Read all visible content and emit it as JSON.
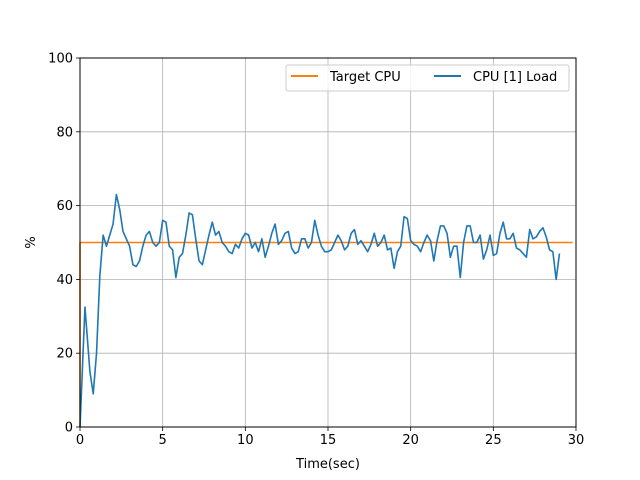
{
  "chart_data": {
    "type": "line",
    "title": "",
    "xlabel": "Time(sec)",
    "ylabel": "%",
    "xlim": [
      0,
      30
    ],
    "ylim": [
      0,
      100
    ],
    "xticks": [
      0,
      5,
      10,
      15,
      20,
      25,
      30
    ],
    "yticks": [
      0,
      20,
      40,
      60,
      80,
      100
    ],
    "grid": true,
    "legend_position": "top-right",
    "series": [
      {
        "name": "Target CPU",
        "color": "#ff7f0e",
        "points": [
          [
            0,
            0
          ],
          [
            0,
            50
          ],
          [
            29.8,
            50
          ]
        ]
      },
      {
        "name": "CPU [1] Load",
        "color": "#1f77b4",
        "points": [
          [
            0,
            0
          ],
          [
            0.3,
            32.5
          ],
          [
            0.6,
            15
          ],
          [
            0.8,
            9
          ],
          [
            1.0,
            20
          ],
          [
            1.2,
            41
          ],
          [
            1.4,
            52
          ],
          [
            1.6,
            49
          ],
          [
            1.8,
            52
          ],
          [
            2.0,
            55
          ],
          [
            2.2,
            63
          ],
          [
            2.4,
            59
          ],
          [
            2.6,
            53
          ],
          [
            2.8,
            51
          ],
          [
            3.0,
            49
          ],
          [
            3.2,
            44
          ],
          [
            3.4,
            43.5
          ],
          [
            3.6,
            45
          ],
          [
            3.8,
            49
          ],
          [
            4.0,
            52
          ],
          [
            4.2,
            53
          ],
          [
            4.4,
            50
          ],
          [
            4.6,
            49
          ],
          [
            4.8,
            50
          ],
          [
            5.0,
            56
          ],
          [
            5.2,
            55.5
          ],
          [
            5.4,
            49
          ],
          [
            5.6,
            48
          ],
          [
            5.8,
            40.5
          ],
          [
            6.0,
            46
          ],
          [
            6.2,
            47
          ],
          [
            6.4,
            52
          ],
          [
            6.6,
            58
          ],
          [
            6.8,
            57.5
          ],
          [
            7.0,
            51
          ],
          [
            7.2,
            45
          ],
          [
            7.4,
            44
          ],
          [
            7.6,
            48
          ],
          [
            7.8,
            52
          ],
          [
            8.0,
            55.5
          ],
          [
            8.2,
            52
          ],
          [
            8.4,
            53
          ],
          [
            8.6,
            50
          ],
          [
            8.8,
            49
          ],
          [
            9.0,
            47.5
          ],
          [
            9.2,
            47
          ],
          [
            9.4,
            49.5
          ],
          [
            9.6,
            48.5
          ],
          [
            9.8,
            51
          ],
          [
            10.0,
            52.5
          ],
          [
            10.2,
            52
          ],
          [
            10.4,
            48.5
          ],
          [
            10.6,
            50
          ],
          [
            10.8,
            47.5
          ],
          [
            11.0,
            51
          ],
          [
            11.2,
            46
          ],
          [
            11.4,
            49
          ],
          [
            11.6,
            52.5
          ],
          [
            11.8,
            55
          ],
          [
            12.0,
            49.5
          ],
          [
            12.2,
            50.5
          ],
          [
            12.4,
            52.5
          ],
          [
            12.6,
            53
          ],
          [
            12.8,
            48.5
          ],
          [
            13.0,
            47
          ],
          [
            13.2,
            47.5
          ],
          [
            13.4,
            51
          ],
          [
            13.6,
            51
          ],
          [
            13.8,
            48.5
          ],
          [
            14.0,
            50
          ],
          [
            14.2,
            56
          ],
          [
            14.4,
            52
          ],
          [
            14.6,
            49
          ],
          [
            14.8,
            47.5
          ],
          [
            15.0,
            47.5
          ],
          [
            15.2,
            48
          ],
          [
            15.4,
            50
          ],
          [
            15.6,
            52
          ],
          [
            15.8,
            50.5
          ],
          [
            16.0,
            48
          ],
          [
            16.2,
            49
          ],
          [
            16.4,
            52.5
          ],
          [
            16.6,
            53.5
          ],
          [
            16.8,
            49.5
          ],
          [
            17.0,
            50.5
          ],
          [
            17.2,
            49
          ],
          [
            17.4,
            47.5
          ],
          [
            17.6,
            49.5
          ],
          [
            17.8,
            52.5
          ],
          [
            18.0,
            49
          ],
          [
            18.2,
            50
          ],
          [
            18.4,
            52
          ],
          [
            18.6,
            48
          ],
          [
            18.8,
            48.5
          ],
          [
            19.0,
            43
          ],
          [
            19.2,
            47.5
          ],
          [
            19.4,
            49
          ],
          [
            19.6,
            57
          ],
          [
            19.8,
            56.5
          ],
          [
            20.0,
            50.5
          ],
          [
            20.2,
            49.5
          ],
          [
            20.4,
            49
          ],
          [
            20.6,
            47.5
          ],
          [
            20.8,
            50
          ],
          [
            21.0,
            52
          ],
          [
            21.2,
            50.5
          ],
          [
            21.4,
            45
          ],
          [
            21.6,
            50.5
          ],
          [
            21.8,
            54.5
          ],
          [
            22.0,
            54.5
          ],
          [
            22.2,
            52.5
          ],
          [
            22.4,
            46
          ],
          [
            22.6,
            49
          ],
          [
            22.8,
            49
          ],
          [
            23.0,
            40.5
          ],
          [
            23.2,
            50
          ],
          [
            23.4,
            54.5
          ],
          [
            23.6,
            54.5
          ],
          [
            23.8,
            50
          ],
          [
            24.0,
            50
          ],
          [
            24.2,
            52
          ],
          [
            24.4,
            45.5
          ],
          [
            24.6,
            48
          ],
          [
            24.8,
            52
          ],
          [
            25.0,
            46.5
          ],
          [
            25.2,
            47
          ],
          [
            25.4,
            52.5
          ],
          [
            25.6,
            55.5
          ],
          [
            25.8,
            51
          ],
          [
            26.0,
            51
          ],
          [
            26.2,
            52.5
          ],
          [
            26.4,
            48.5
          ],
          [
            26.6,
            48
          ],
          [
            26.8,
            47
          ],
          [
            27.0,
            46
          ],
          [
            27.2,
            53.5
          ],
          [
            27.4,
            51
          ],
          [
            27.6,
            51.5
          ],
          [
            27.8,
            53
          ],
          [
            28.0,
            54
          ],
          [
            28.2,
            51.5
          ],
          [
            28.4,
            48
          ],
          [
            28.6,
            47.5
          ],
          [
            28.8,
            40
          ],
          [
            29.0,
            47
          ]
        ]
      }
    ]
  }
}
